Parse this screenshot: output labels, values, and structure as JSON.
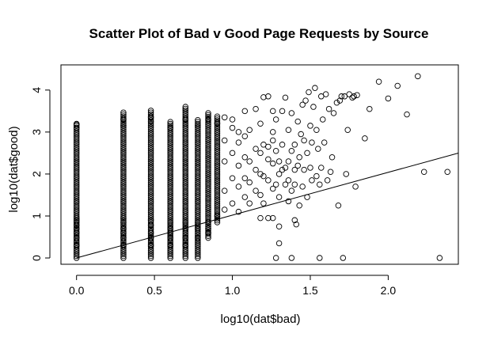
{
  "chart_data": {
    "type": "scatter",
    "title": "Scatter Plot of Bad v Good Page Requests by Source",
    "xlabel": "log10(dat$bad)",
    "ylabel": "log10(dat$good)",
    "xlim": [
      -0.1,
      2.45
    ],
    "ylim": [
      -0.15,
      4.6
    ],
    "x_ticks": [
      0.0,
      0.5,
      1.0,
      1.5,
      2.0
    ],
    "x_tick_labels": [
      "0.0",
      "0.5",
      "1.0",
      "1.5",
      "2.0"
    ],
    "y_ticks": [
      0,
      1,
      2,
      3,
      4
    ],
    "y_tick_labels": [
      "0",
      "1",
      "2",
      "3",
      "4"
    ],
    "grid": false,
    "marker": "open-circle",
    "fit_line": {
      "intercept": 0.0,
      "slope": 1.02
    },
    "columns": [
      {
        "x": 0.0,
        "y_min": 0.0,
        "y_max": 3.22,
        "extra": [
          0.3,
          0.48,
          0.6,
          0.7,
          0.78,
          0.85,
          0.9,
          0.95,
          3.1,
          3.18
        ]
      },
      {
        "x": 0.301,
        "y_min": 0.0,
        "y_max": 3.48,
        "extra": [
          0.3,
          0.48,
          0.6,
          0.7,
          0.85,
          0.95,
          3.15,
          3.3
        ]
      },
      {
        "x": 0.477,
        "y_min": 0.0,
        "y_max": 3.55,
        "extra": [
          0.3,
          0.48,
          0.6,
          0.78,
          0.9,
          3.25,
          3.35
        ]
      },
      {
        "x": 0.602,
        "y_min": 0.0,
        "y_max": 3.25,
        "extra": [
          0.3,
          0.48,
          0.6,
          0.7,
          0.85,
          3.1
        ]
      },
      {
        "x": 0.699,
        "y_min": 0.0,
        "y_max": 3.6,
        "extra": [
          0.3,
          0.48,
          0.7,
          0.85,
          3.3
        ]
      },
      {
        "x": 0.778,
        "y_min": 0.0,
        "y_max": 3.32,
        "extra": [
          0.48,
          0.7,
          0.85,
          3.15
        ]
      },
      {
        "x": 0.845,
        "y_min": 0.48,
        "y_max": 3.45,
        "extra": [
          0.6,
          0.7,
          0.85,
          3.3
        ]
      },
      {
        "x": 0.903,
        "y_min": 0.85,
        "y_max": 3.4,
        "extra": [
          1.0,
          3.2
        ]
      }
    ],
    "points": [
      [
        0.95,
        1.15
      ],
      [
        0.95,
        1.6
      ],
      [
        0.95,
        2.3
      ],
      [
        0.95,
        2.8
      ],
      [
        0.95,
        3.35
      ],
      [
        1.0,
        1.3
      ],
      [
        1.0,
        1.9
      ],
      [
        1.0,
        2.5
      ],
      [
        1.0,
        3.1
      ],
      [
        1.0,
        3.3
      ],
      [
        1.04,
        1.1
      ],
      [
        1.04,
        1.7
      ],
      [
        1.04,
        2.2
      ],
      [
        1.04,
        2.75
      ],
      [
        1.04,
        3.0
      ],
      [
        1.08,
        1.45
      ],
      [
        1.08,
        1.9
      ],
      [
        1.08,
        2.4
      ],
      [
        1.08,
        2.9
      ],
      [
        1.08,
        3.5
      ],
      [
        1.11,
        1.3
      ],
      [
        1.11,
        1.8
      ],
      [
        1.11,
        2.3
      ],
      [
        1.11,
        3.05
      ],
      [
        1.15,
        1.6
      ],
      [
        1.15,
        2.1
      ],
      [
        1.15,
        2.6
      ],
      [
        1.15,
        3.55
      ],
      [
        1.18,
        0.95
      ],
      [
        1.18,
        1.5
      ],
      [
        1.18,
        2.0
      ],
      [
        1.18,
        2.5
      ],
      [
        1.18,
        3.2
      ],
      [
        1.2,
        1.3
      ],
      [
        1.2,
        1.95
      ],
      [
        1.2,
        2.7
      ],
      [
        1.2,
        3.83
      ],
      [
        1.23,
        0.95
      ],
      [
        1.23,
        1.85
      ],
      [
        1.23,
        2.35
      ],
      [
        1.23,
        2.65
      ],
      [
        1.23,
        3.85
      ],
      [
        1.26,
        0.95
      ],
      [
        1.26,
        1.65
      ],
      [
        1.26,
        2.25
      ],
      [
        1.26,
        2.8
      ],
      [
        1.26,
        3.0
      ],
      [
        1.26,
        3.5
      ],
      [
        1.28,
        0.0
      ],
      [
        1.28,
        1.75
      ],
      [
        1.28,
        2.55
      ],
      [
        1.28,
        3.3
      ],
      [
        1.3,
        0.35
      ],
      [
        1.3,
        0.75
      ],
      [
        1.3,
        1.45
      ],
      [
        1.3,
        2.0
      ],
      [
        1.3,
        2.3
      ],
      [
        1.32,
        2.1
      ],
      [
        1.32,
        2.7
      ],
      [
        1.32,
        3.5
      ],
      [
        1.34,
        1.75
      ],
      [
        1.34,
        2.15
      ],
      [
        1.34,
        3.82
      ],
      [
        1.36,
        1.35
      ],
      [
        1.36,
        1.85
      ],
      [
        1.36,
        2.3
      ],
      [
        1.36,
        3.05
      ],
      [
        1.38,
        0.0
      ],
      [
        1.38,
        1.6
      ],
      [
        1.38,
        2.55
      ],
      [
        1.38,
        3.45
      ],
      [
        1.4,
        0.9
      ],
      [
        1.4,
        1.75
      ],
      [
        1.4,
        2.1
      ],
      [
        1.4,
        2.7
      ],
      [
        1.41,
        0.8
      ],
      [
        1.42,
        2.2
      ],
      [
        1.42,
        3.25
      ],
      [
        1.43,
        1.25
      ],
      [
        1.43,
        2.4
      ],
      [
        1.44,
        2.95
      ],
      [
        1.45,
        1.7
      ],
      [
        1.45,
        3.65
      ],
      [
        1.46,
        2.1
      ],
      [
        1.46,
        2.8
      ],
      [
        1.47,
        3.75
      ],
      [
        1.48,
        1.45
      ],
      [
        1.48,
        2.5
      ],
      [
        1.49,
        3.95
      ],
      [
        1.5,
        2.15
      ],
      [
        1.5,
        3.15
      ],
      [
        1.51,
        1.85
      ],
      [
        1.51,
        2.75
      ],
      [
        1.52,
        3.6
      ],
      [
        1.53,
        4.05
      ],
      [
        1.54,
        1.95
      ],
      [
        1.54,
        3.05
      ],
      [
        1.55,
        2.6
      ],
      [
        1.56,
        0.0
      ],
      [
        1.56,
        1.75
      ],
      [
        1.57,
        3.85
      ],
      [
        1.57,
        2.15
      ],
      [
        1.58,
        3.3
      ],
      [
        1.59,
        2.75
      ],
      [
        1.6,
        3.9
      ],
      [
        1.61,
        1.85
      ],
      [
        1.62,
        3.55
      ],
      [
        1.63,
        2.05
      ],
      [
        1.64,
        2.4
      ],
      [
        1.65,
        3.45
      ],
      [
        1.67,
        3.7
      ],
      [
        1.68,
        1.25
      ],
      [
        1.69,
        3.75
      ],
      [
        1.7,
        3.85
      ],
      [
        1.71,
        0.0
      ],
      [
        1.72,
        3.85
      ],
      [
        1.73,
        2.0
      ],
      [
        1.74,
        3.05
      ],
      [
        1.75,
        3.9
      ],
      [
        1.77,
        3.82
      ],
      [
        1.78,
        3.85
      ],
      [
        1.79,
        1.7
      ],
      [
        1.8,
        3.88
      ],
      [
        1.85,
        2.85
      ],
      [
        1.88,
        3.55
      ],
      [
        1.94,
        4.2
      ],
      [
        2.0,
        3.8
      ],
      [
        2.06,
        4.1
      ],
      [
        2.12,
        3.42
      ],
      [
        2.19,
        4.33
      ],
      [
        2.23,
        2.05
      ],
      [
        2.33,
        0.0
      ],
      [
        2.38,
        2.05
      ]
    ]
  }
}
